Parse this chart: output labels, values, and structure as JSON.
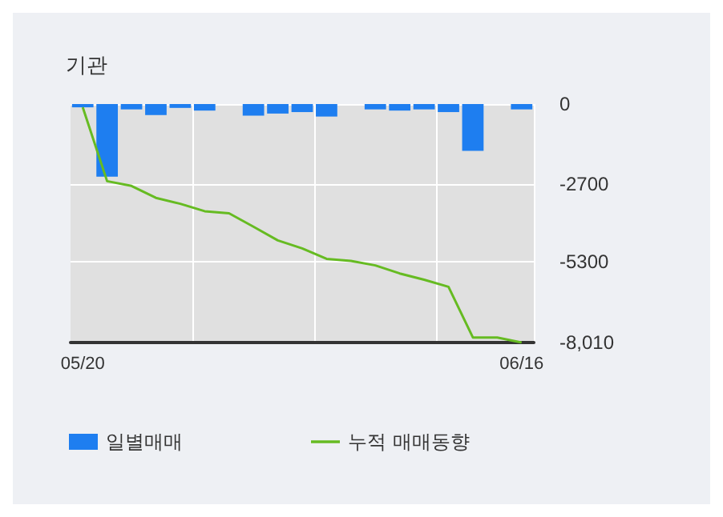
{
  "chart_data": {
    "type": "bar",
    "title": "기관",
    "categories": [
      "05/20",
      null,
      null,
      null,
      null,
      null,
      null,
      null,
      null,
      null,
      null,
      null,
      null,
      null,
      null,
      null,
      null,
      null,
      "06/16"
    ],
    "series": [
      {
        "name": "일별매매",
        "color": "#1e7ef0",
        "values": [
          -110,
          -2440,
          -180,
          -370,
          -130,
          -220,
          0,
          -390,
          -320,
          -270,
          -420,
          0,
          -180,
          -220,
          -180,
          -270,
          -1570,
          0,
          -180
        ]
      },
      {
        "name": "누적 매매동향",
        "type": "line",
        "color": "#66bb22",
        "values": [
          -110,
          -2590,
          -2750,
          -3150,
          -3350,
          -3600,
          -3670,
          -4120,
          -4580,
          -4850,
          -5200,
          -5270,
          -5420,
          -5690,
          -5900,
          -6140,
          -7840,
          -7840,
          -8010
        ]
      }
    ],
    "ylim": [
      -8010,
      0
    ],
    "yticks": [
      0,
      -2700,
      -5300,
      {
        "value": -8010,
        "label": "-8,010"
      }
    ],
    "grid": true,
    "legend": "bottom",
    "marker": "none",
    "line_style": "solid"
  }
}
